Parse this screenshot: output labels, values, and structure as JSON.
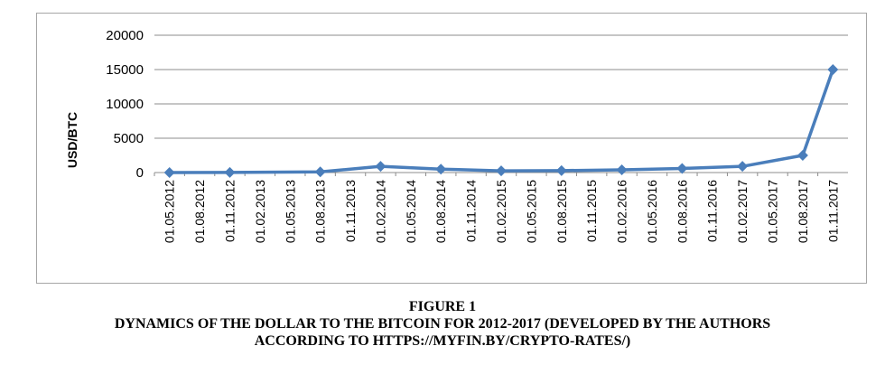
{
  "figure": {
    "number_label": "FIGURE 1",
    "caption_line1": "DYNAMICS OF THE DOLLAR TO THE BITCOIN FOR 2012-2017 (DEVELOPED BY THE AUTHORS",
    "caption_line2": "ACCORDING TO HTTPS://MYFIN.BY/CRYPTO-RATES/)"
  },
  "chart_data": {
    "type": "line",
    "ylabel": "USD/BTC",
    "xlabel": "",
    "ylim": [
      0,
      20000
    ],
    "yticks": [
      0,
      5000,
      10000,
      15000,
      20000
    ],
    "grid": true,
    "series_color": "#4a7ebb",
    "x": [
      "01.05.2012",
      "01.08.2012",
      "01.11.2012",
      "01.02.2013",
      "01.05.2013",
      "01.08.2013",
      "01.11.2013",
      "01.02.2014",
      "01.05.2014",
      "01.08.2014",
      "01.11.2014",
      "01.02.2015",
      "01.05.2015",
      "01.08.2015",
      "01.11.2015",
      "01.02.2016",
      "01.05.2016",
      "01.08.2016",
      "01.11.2016",
      "01.02.2017",
      "01.05.2017",
      "01.08.2017",
      "01.11.2017"
    ],
    "series": [
      {
        "points": [
          {
            "x": "01.05.2012",
            "y": 5
          },
          {
            "x": "01.11.2012",
            "y": 12
          },
          {
            "x": "01.08.2013",
            "y": 100
          },
          {
            "x": "01.02.2014",
            "y": 900
          },
          {
            "x": "01.08.2014",
            "y": 500
          },
          {
            "x": "01.02.2015",
            "y": 250
          },
          {
            "x": "01.08.2015",
            "y": 280
          },
          {
            "x": "01.02.2016",
            "y": 400
          },
          {
            "x": "01.08.2016",
            "y": 600
          },
          {
            "x": "01.02.2017",
            "y": 900
          },
          {
            "x": "01.08.2017",
            "y": 2500
          },
          {
            "x": "01.11.2017",
            "y": 15000
          }
        ]
      }
    ]
  }
}
